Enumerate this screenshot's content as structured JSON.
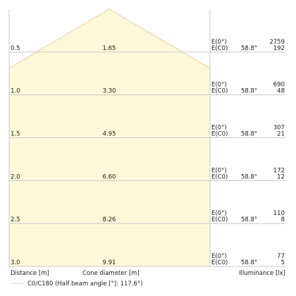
{
  "chart_data": {
    "type": "area",
    "title": "",
    "xlabel": "Distance [m]",
    "mid_label": "Cone diameter [m]",
    "ylabel": "Illuminance [lx]",
    "legend": "C0/C180 (Half beam angle [°]: 117.6°)",
    "half_angle_deg": 117.6,
    "angle_label": "58.8°",
    "e0_label": "E(0°)",
    "ec0_label": "E(C0)",
    "fill_color": "#fbf9d9",
    "line_color": "#f5c8a8",
    "grid_color": "#c8c8c8",
    "rows": [
      {
        "distance": "0.5",
        "diameter": "1.65",
        "e0": "2759",
        "ec0": "192"
      },
      {
        "distance": "1.0",
        "diameter": "3.30",
        "e0": "690",
        "ec0": "48"
      },
      {
        "distance": "1.5",
        "diameter": "4.95",
        "e0": "307",
        "ec0": "21"
      },
      {
        "distance": "2.0",
        "diameter": "6.60",
        "e0": "172",
        "ec0": "12"
      },
      {
        "distance": "2.5",
        "diameter": "8.26",
        "e0": "110",
        "ec0": "8"
      },
      {
        "distance": "3.0",
        "diameter": "9.91",
        "e0": "77",
        "ec0": "5"
      }
    ]
  }
}
